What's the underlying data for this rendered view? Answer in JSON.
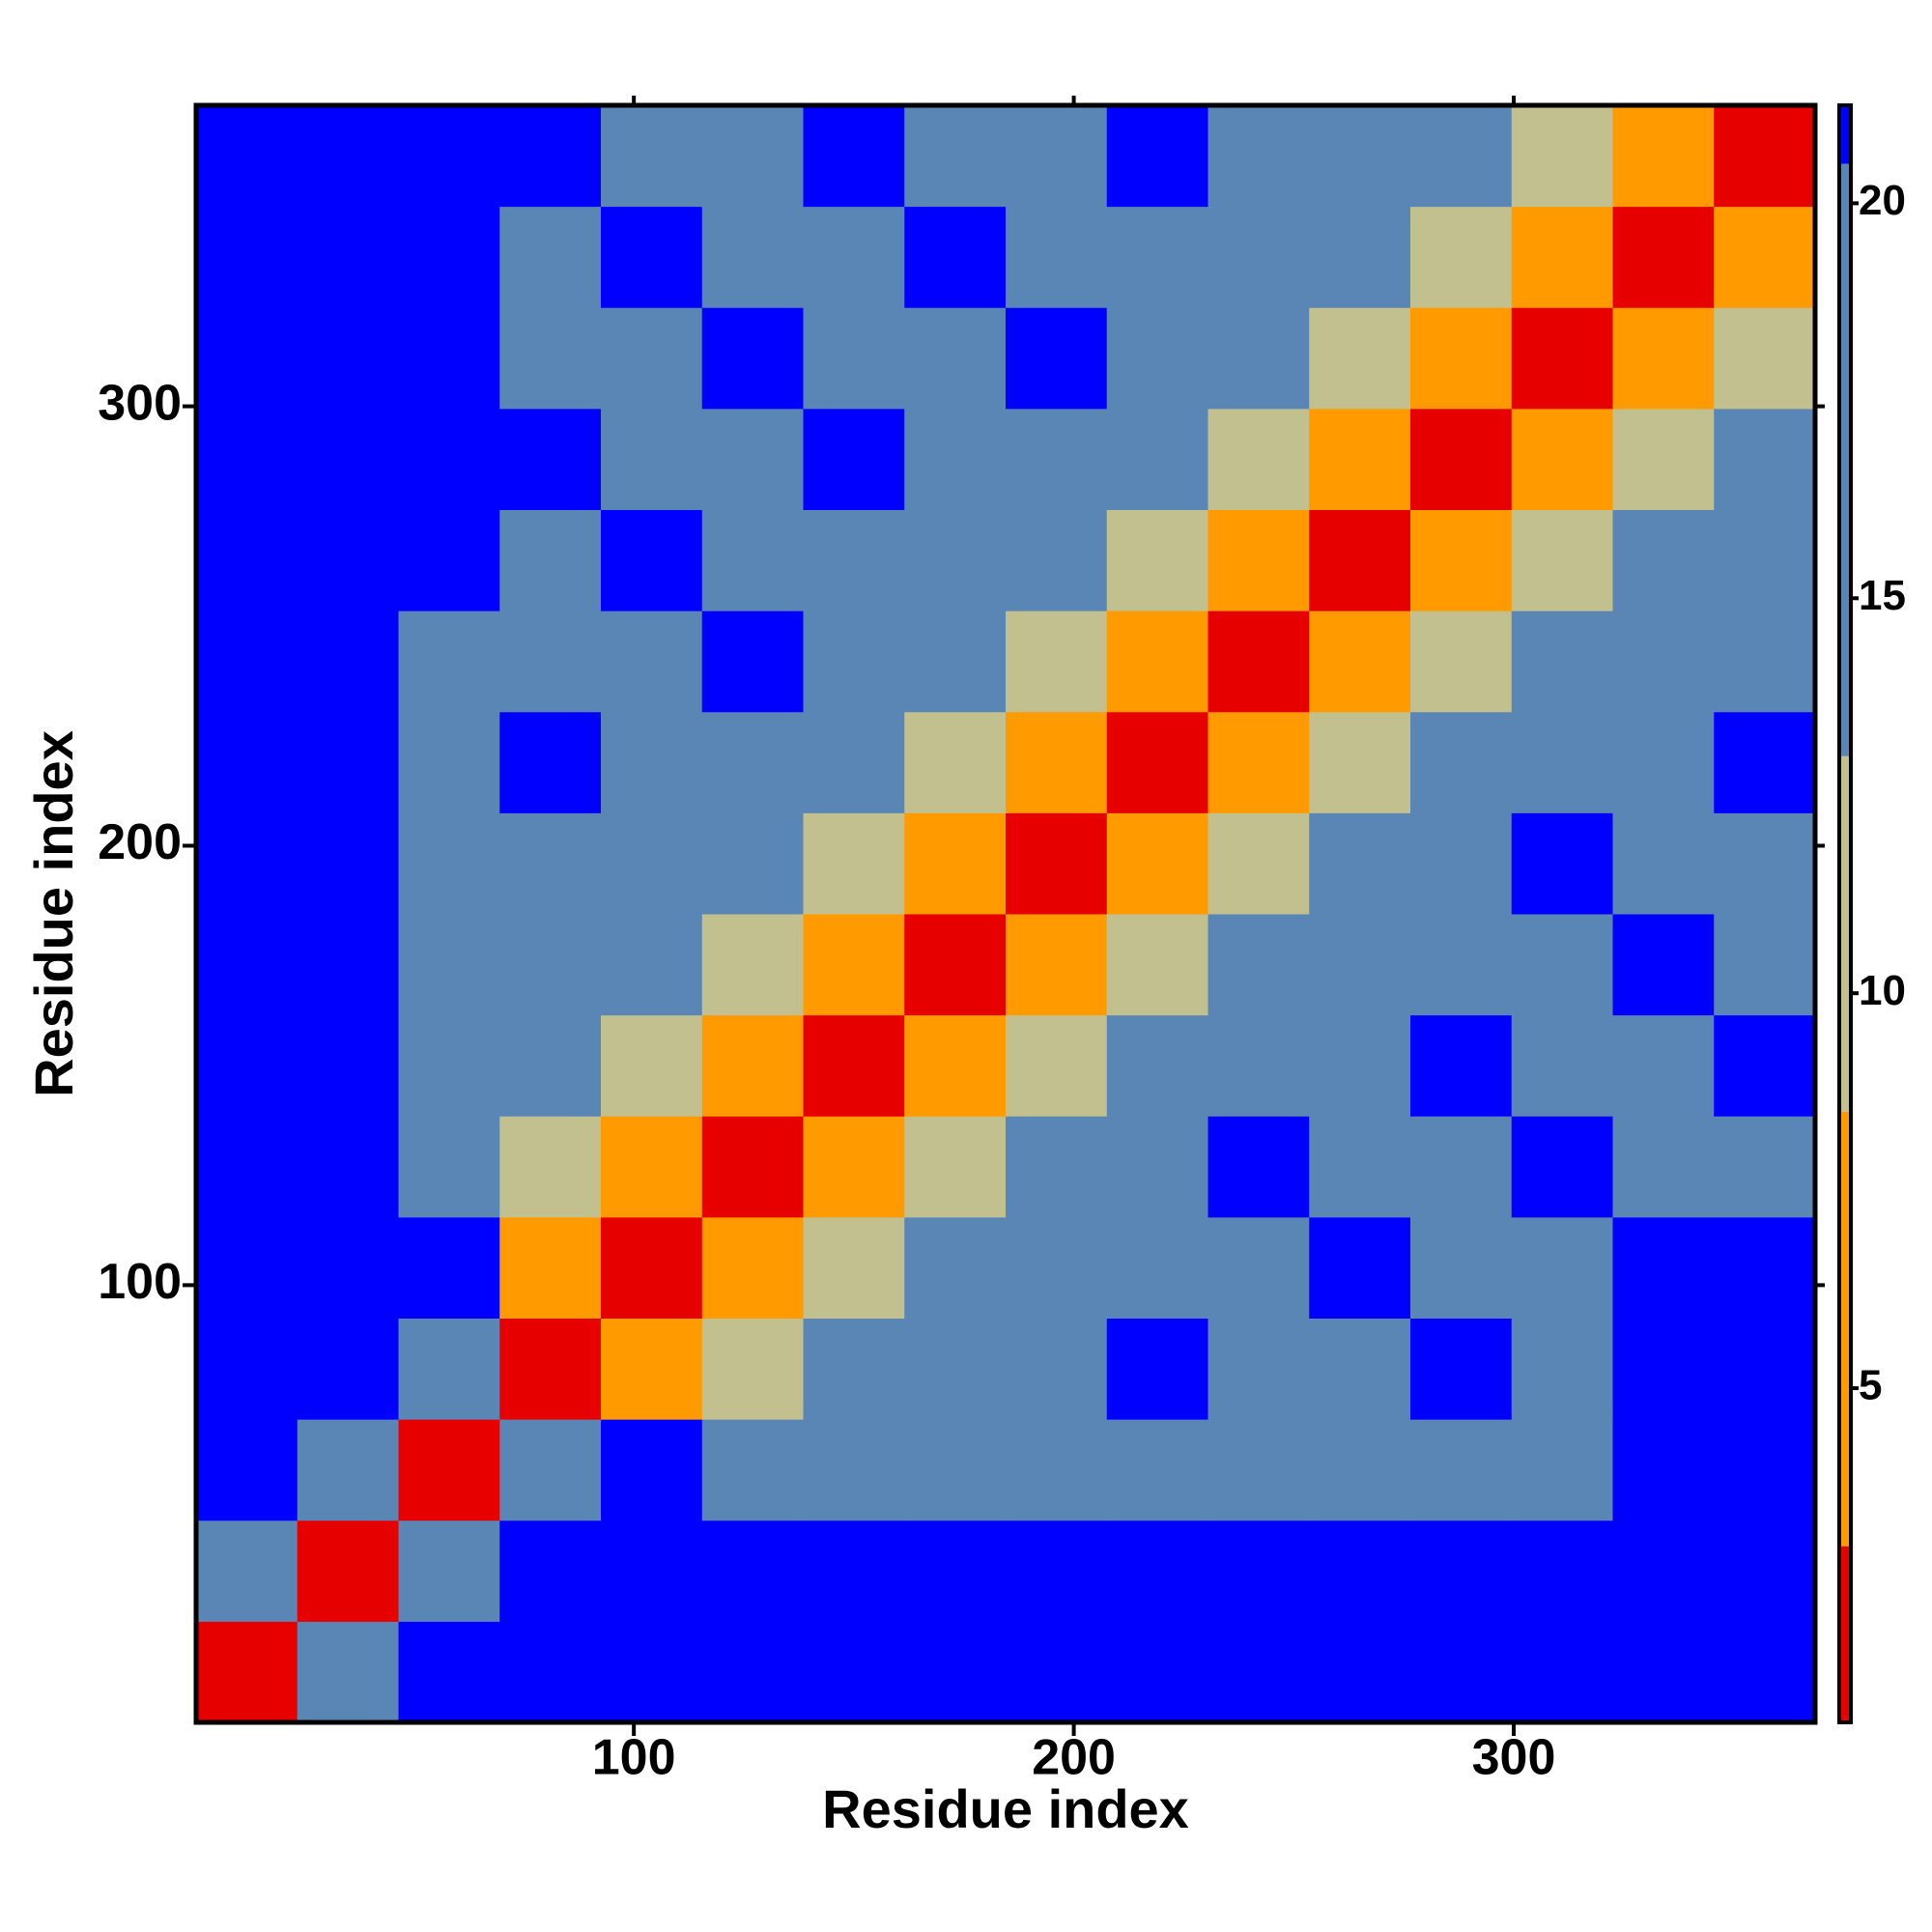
{
  "chart_data": {
    "type": "heatmap",
    "xlabel": "Residue index",
    "ylabel": "Residue index",
    "x": [
      12,
      35,
      58,
      81,
      104,
      127,
      150,
      173,
      196,
      219,
      242,
      265,
      288,
      311,
      334,
      357
    ],
    "y": [
      12,
      35,
      58,
      81,
      104,
      127,
      150,
      173,
      196,
      219,
      242,
      265,
      288,
      311,
      334,
      357
    ],
    "z": [
      [
        2,
        18,
        21,
        21,
        21,
        21,
        21,
        21,
        21,
        21,
        21,
        21,
        21,
        21,
        21,
        21
      ],
      [
        18,
        2,
        18,
        21,
        21,
        21,
        21,
        21,
        21,
        21,
        21,
        21,
        21,
        21,
        21,
        21
      ],
      [
        21,
        18,
        2,
        18,
        21,
        19,
        19,
        19,
        19,
        19,
        19,
        19,
        19,
        19,
        21,
        21
      ],
      [
        21,
        21,
        18,
        2,
        7,
        12,
        17,
        17,
        17,
        21,
        17,
        17,
        21,
        17,
        21,
        21
      ],
      [
        21,
        21,
        21,
        7,
        2,
        7,
        12,
        17,
        17,
        17,
        17,
        21,
        17,
        17,
        21,
        21
      ],
      [
        21,
        21,
        19,
        12,
        7,
        2,
        7,
        12,
        17,
        17,
        21,
        17,
        17,
        21,
        17,
        17
      ],
      [
        21,
        21,
        19,
        17,
        12,
        7,
        2,
        7,
        12,
        17,
        17,
        17,
        21,
        17,
        17,
        21
      ],
      [
        21,
        21,
        19,
        17,
        17,
        12,
        7,
        2,
        7,
        12,
        17,
        17,
        17,
        17,
        21,
        17
      ],
      [
        21,
        21,
        19,
        17,
        17,
        17,
        12,
        7,
        2,
        7,
        12,
        17,
        17,
        21,
        17,
        17
      ],
      [
        21,
        21,
        19,
        21,
        17,
        17,
        17,
        12,
        7,
        2,
        7,
        12,
        17,
        17,
        17,
        21
      ],
      [
        21,
        21,
        19,
        17,
        17,
        21,
        17,
        17,
        12,
        7,
        2,
        7,
        12,
        17,
        17,
        17
      ],
      [
        21,
        21,
        21,
        17,
        21,
        17,
        17,
        17,
        17,
        12,
        7,
        2,
        7,
        12,
        17,
        17
      ],
      [
        21,
        21,
        21,
        21,
        17,
        17,
        21,
        17,
        17,
        17,
        12,
        7,
        2,
        7,
        12,
        17
      ],
      [
        21,
        21,
        21,
        17,
        17,
        21,
        17,
        17,
        21,
        17,
        17,
        12,
        7,
        2,
        7,
        12
      ],
      [
        21,
        21,
        21,
        17,
        21,
        17,
        17,
        21,
        17,
        17,
        17,
        17,
        12,
        7,
        2,
        7
      ],
      [
        21,
        21,
        21,
        21,
        17,
        17,
        21,
        17,
        17,
        21,
        17,
        17,
        17,
        12,
        7,
        2
      ]
    ],
    "xlim": [
      0.5,
      368.5
    ],
    "ylim": [
      0.5,
      368.5
    ],
    "xticks": [
      100,
      200,
      300
    ],
    "yticks": [
      100,
      200,
      300
    ],
    "clim": [
      0.77,
      21.24
    ],
    "color_breaks": [
      3,
      8.5,
      13,
      20.5
    ],
    "colors": [
      "#e60000",
      "#ff9a00",
      "#c2c08e",
      "#5a86b6",
      "#0000ff"
    ],
    "cticks": [
      5,
      10,
      15,
      20
    ]
  }
}
